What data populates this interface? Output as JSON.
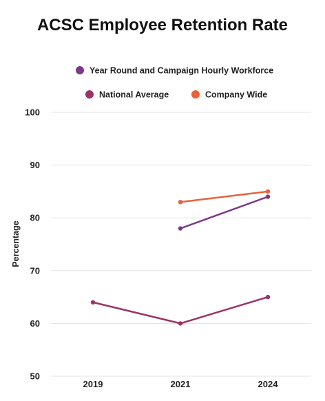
{
  "chart_data": {
    "type": "line",
    "title": "ACSC Employee Retention Rate",
    "xlabel": "",
    "ylabel": "Percentage",
    "categories": [
      "2019",
      "2021",
      "2024"
    ],
    "ylim": [
      50,
      100
    ],
    "yticks": [
      50,
      60,
      70,
      80,
      90,
      100
    ],
    "grid": true,
    "legend_position": "top",
    "series": [
      {
        "name": "Year Round and Campaign Hourly Workforce",
        "color": "#7b3a87",
        "values": [
          null,
          78,
          84
        ]
      },
      {
        "name": "National Average",
        "color": "#9c3366",
        "values": [
          64,
          60,
          65
        ]
      },
      {
        "name": "Company Wide",
        "color": "#e8623a",
        "values": [
          null,
          83,
          85
        ]
      }
    ]
  }
}
